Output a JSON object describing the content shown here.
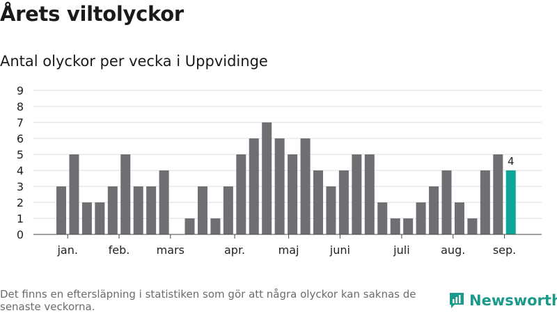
{
  "header": {
    "title": "Årets viltolyckor",
    "subtitle": "Antal olyckor per vecka i Uppvidinge"
  },
  "footer": {
    "note": "Det finns en eftersläpning i statistiken som gör att några olyckor kan saknas de senaste veckorna.",
    "brand": "Newsworthy"
  },
  "colors": {
    "bar": "#6f6e73",
    "highlight": "#0fa69a",
    "grid": "#dddddd",
    "brand": "#1b9a8b"
  },
  "icons": {
    "brand_logo": "bar-chart-logo-icon"
  },
  "chart_data": {
    "type": "bar",
    "ylim": [
      0,
      9
    ],
    "yticks": [
      0,
      1,
      2,
      3,
      4,
      5,
      6,
      7,
      8,
      9
    ],
    "grid": true,
    "values": [
      3,
      5,
      2,
      2,
      3,
      5,
      3,
      3,
      4,
      0,
      1,
      3,
      1,
      3,
      5,
      6,
      7,
      6,
      5,
      6,
      4,
      3,
      4,
      5,
      5,
      2,
      1,
      1,
      2,
      3,
      4,
      2,
      1,
      4,
      5,
      4
    ],
    "highlight_index": 35,
    "highlight_label": "4",
    "month_labels": [
      {
        "label": "jan.",
        "index": 0.5
      },
      {
        "label": "feb.",
        "index": 4.5
      },
      {
        "label": "mars",
        "index": 8.5
      },
      {
        "label": "apr.",
        "index": 13.5
      },
      {
        "label": "maj",
        "index": 17.7
      },
      {
        "label": "juni",
        "index": 21.7
      },
      {
        "label": "juli",
        "index": 26.5
      },
      {
        "label": "aug.",
        "index": 30.5
      },
      {
        "label": "sep.",
        "index": 34.5
      }
    ]
  }
}
